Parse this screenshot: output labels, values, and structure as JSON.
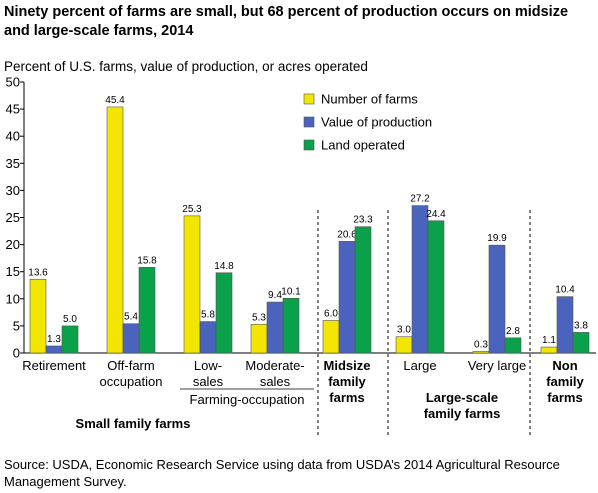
{
  "title": "Ninety percent of farms are small, but 68 percent of production occurs on midsize and large-scale farms, 2014",
  "source": "Source:  USDA, Economic Research Service using data from USDA’s 2014 Agricultural Resource Management Survey.",
  "chart_data": {
    "type": "bar",
    "title": "Ninety percent of farms are small, but 68 percent of production occurs on midsize and large-scale farms, 2014",
    "ylabel": "Percent of U.S. farms, value of production, or acres operated",
    "xlabel": "",
    "ylim": [
      0,
      50
    ],
    "yticks": [
      "0",
      "5",
      "10",
      "15",
      "20",
      "25",
      "30",
      "35",
      "40",
      "45",
      "50"
    ],
    "grid": false,
    "legend_position": "top-right",
    "categories": [
      [
        "Retirement"
      ],
      [
        "Off-farm",
        "occupation"
      ],
      [
        "Low-",
        "sales"
      ],
      [
        "Moderate-",
        "sales"
      ],
      [
        "Midsize",
        "family",
        "farms"
      ],
      [
        "Large"
      ],
      [
        "Very large"
      ],
      [
        "Non",
        "family",
        "farms"
      ]
    ],
    "category_bold": [
      false,
      false,
      false,
      false,
      true,
      false,
      false,
      true
    ],
    "series": [
      {
        "name": "Number of farms",
        "color": "#f2e600",
        "values": [
          13.6,
          45.4,
          25.3,
          5.3,
          6.0,
          3.0,
          0.3,
          1.1
        ],
        "labels": [
          "13.6",
          "45.4",
          "25.3",
          "5.3",
          "6.0",
          "3.0",
          "0.3",
          "1.1"
        ]
      },
      {
        "name": "Value of production",
        "color": "#4a63bd",
        "values": [
          1.3,
          5.4,
          5.8,
          9.4,
          20.6,
          27.2,
          19.9,
          10.4
        ],
        "labels": [
          "1.3",
          "5.4",
          "5.8",
          "9.4",
          "20.6",
          "27.2",
          "19.9",
          "10.4"
        ]
      },
      {
        "name": "Land operated",
        "color": "#0aa14a",
        "values": [
          5.0,
          15.8,
          14.8,
          10.1,
          23.3,
          24.4,
          2.8,
          3.8
        ],
        "labels": [
          "5.0",
          "15.8",
          "14.8",
          "10.1",
          "23.3",
          "24.4",
          "2.8",
          "3.8"
        ]
      }
    ],
    "subgroup_label": "Farming-occupation",
    "group_labels": [
      {
        "lines": [
          "Small family farms"
        ]
      },
      {
        "lines": [
          "Large-scale",
          "family farms"
        ]
      }
    ]
  }
}
